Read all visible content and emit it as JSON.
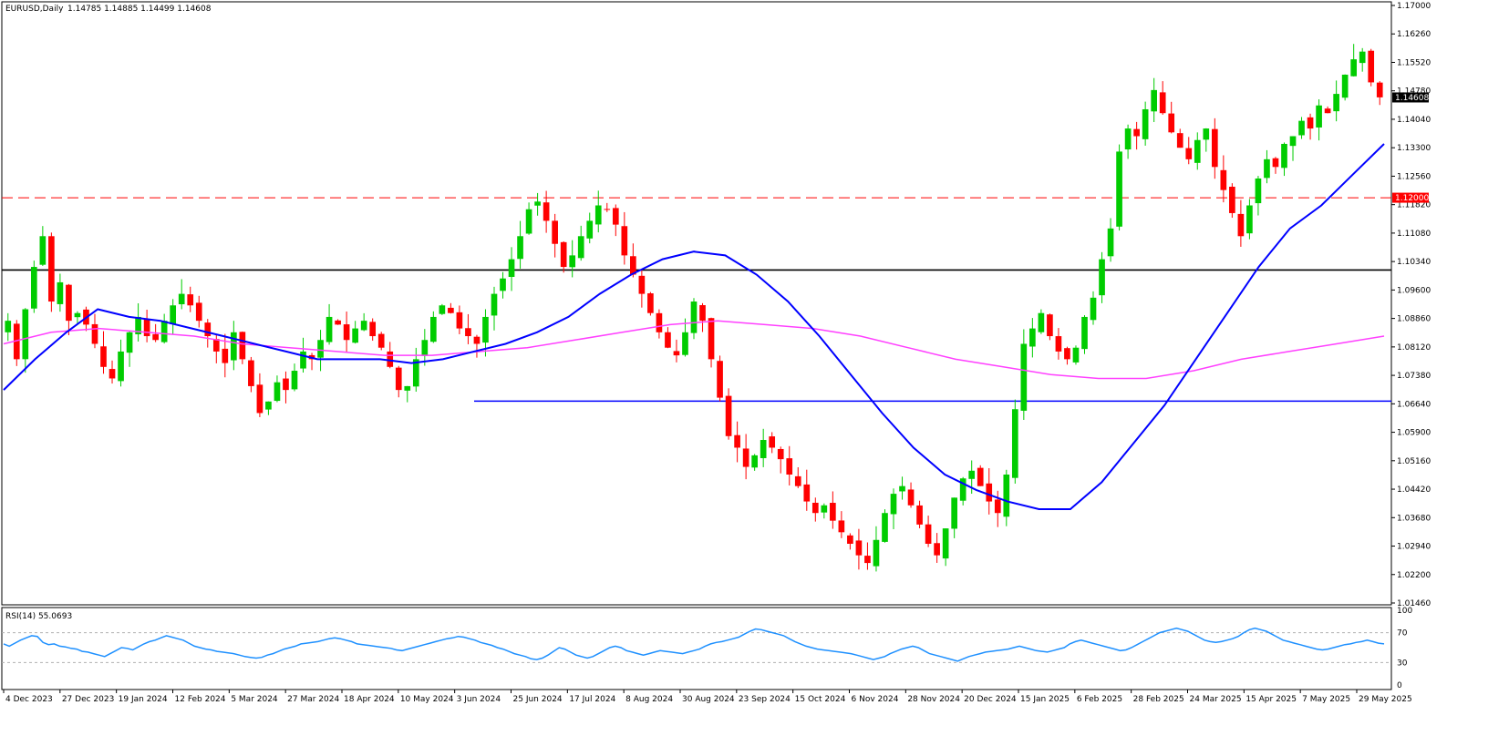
{
  "header": {
    "symbol_text": "EURUSD,Daily",
    "ohlc_text": "1.14785 1.14885 1.14499 1.14608"
  },
  "rsi": {
    "label": "RSI(14) 55.0693",
    "levels": [
      100,
      70,
      30,
      0
    ],
    "level_lines": [
      70,
      30
    ],
    "values": [
      55,
      52,
      56,
      60,
      63,
      66,
      65,
      57,
      54,
      55,
      52,
      51,
      49,
      48,
      45,
      44,
      42,
      40,
      38,
      42,
      46,
      50,
      49,
      47,
      51,
      55,
      58,
      60,
      63,
      66,
      64,
      62,
      60,
      56,
      52,
      50,
      48,
      47,
      45,
      44,
      43,
      42,
      40,
      38,
      37,
      36,
      37,
      40,
      42,
      45,
      48,
      50,
      52,
      55,
      56,
      57,
      58,
      60,
      62,
      63,
      62,
      60,
      58,
      55,
      54,
      53,
      52,
      51,
      50,
      49,
      47,
      46,
      48,
      50,
      52,
      54,
      56,
      58,
      60,
      62,
      63,
      65,
      64,
      62,
      60,
      57,
      55,
      53,
      50,
      48,
      45,
      42,
      40,
      38,
      35,
      34,
      36,
      40,
      45,
      50,
      48,
      44,
      40,
      38,
      36,
      38,
      42,
      46,
      50,
      52,
      50,
      46,
      44,
      42,
      40,
      42,
      44,
      46,
      45,
      44,
      43,
      42,
      44,
      46,
      48,
      52,
      55,
      57,
      58,
      60,
      62,
      64,
      68,
      72,
      75,
      74,
      72,
      70,
      68,
      66,
      62,
      58,
      55,
      52,
      50,
      48,
      47,
      46,
      45,
      44,
      43,
      42,
      40,
      38,
      36,
      34,
      36,
      38,
      42,
      45,
      48,
      50,
      52,
      50,
      46,
      42,
      40,
      38,
      36,
      34,
      32,
      35,
      38,
      40,
      42,
      44,
      45,
      46,
      47,
      48,
      50,
      52,
      50,
      48,
      46,
      45,
      44,
      46,
      48,
      50,
      55,
      58,
      60,
      58,
      56,
      54,
      52,
      50,
      48,
      46,
      47,
      50,
      54,
      58,
      62,
      66,
      70,
      72,
      74,
      76,
      74,
      72,
      68,
      64,
      60,
      58,
      57,
      58,
      60,
      62,
      65,
      70,
      74,
      76,
      74,
      72,
      68,
      64,
      60,
      58,
      56,
      54,
      52,
      50,
      48,
      47,
      48,
      50,
      52,
      54,
      55,
      57,
      58,
      60,
      58,
      56,
      55
    ]
  },
  "price_axis": {
    "labels": [
      "1.17000",
      "1.16260",
      "1.15520",
      "1.14780",
      "1.14040",
      "1.13300",
      "1.12560",
      "1.11820",
      "1.11080",
      "1.10340",
      "1.09600",
      "1.08860",
      "1.08120",
      "1.07380",
      "1.06640",
      "1.05900",
      "1.05160",
      "1.04420",
      "1.03680",
      "1.02940",
      "1.02200",
      "1.01460"
    ],
    "current_price_label": "1.14608",
    "current_price": 1.14608,
    "level_label": "1.12000",
    "level_color": "#ff0000",
    "current_color": "#000000"
  },
  "time_axis": {
    "labels": [
      "4 Dec 2023",
      "27 Dec 2023",
      "19 Jan 2024",
      "12 Feb 2024",
      "5 Mar 2024",
      "27 Mar 2024",
      "18 Apr 2024",
      "10 May 2024",
      "3 Jun 2024",
      "25 Jun 2024",
      "17 Jul 2024",
      "8 Aug 2024",
      "30 Aug 2024",
      "23 Sep 2024",
      "15 Oct 2024",
      "6 Nov 2024",
      "28 Nov 2024",
      "20 Dec 2024",
      "15 Jan 2025",
      "6 Feb 2025",
      "28 Feb 2025",
      "24 Mar 2025",
      "15 Apr 2025",
      "7 May 2025",
      "29 May 2025"
    ]
  },
  "colors": {
    "bull": "#00cc00",
    "bear": "#ff0000",
    "ma_fast": "#0000ff",
    "ma_slow": "#ff40ff",
    "hline_black": "#000000",
    "hline_blue": "#0000ff",
    "hline_red_dashed": "#ff0000",
    "rsi": "#1e90ff"
  },
  "chart_data": {
    "type": "candlestick",
    "symbol": "EURUSD",
    "timeframe": "Daily",
    "ylim": [
      1.0146,
      1.17
    ],
    "horizontal_levels": [
      {
        "price": 1.12,
        "style": "dashed",
        "color": "red"
      },
      {
        "price": 1.1012,
        "style": "solid",
        "color": "black"
      },
      {
        "price": 1.0671,
        "style": "solid",
        "color": "blue",
        "start_label": "3 Jun 2024"
      }
    ],
    "close_path": [
      1.088,
      1.078,
      1.091,
      1.102,
      1.11,
      1.093,
      1.098,
      1.088,
      1.09,
      1.087,
      1.082,
      1.076,
      1.073,
      1.08,
      1.085,
      1.089,
      1.084,
      1.083,
      1.088,
      1.092,
      1.095,
      1.092,
      1.088,
      1.084,
      1.08,
      1.077,
      1.085,
      1.078,
      1.071,
      1.064,
      1.067,
      1.072,
      1.07,
      1.075,
      1.08,
      1.078,
      1.083,
      1.089,
      1.087,
      1.083,
      1.086,
      1.088,
      1.084,
      1.081,
      1.076,
      1.07,
      1.071,
      1.078,
      1.083,
      1.089,
      1.092,
      1.09,
      1.086,
      1.084,
      1.082,
      1.089,
      1.095,
      1.099,
      1.104,
      1.11,
      1.117,
      1.119,
      1.114,
      1.108,
      1.102,
      1.105,
      1.11,
      1.114,
      1.118,
      1.117,
      1.113,
      1.105,
      1.1,
      1.095,
      1.09,
      1.085,
      1.081,
      1.079,
      1.085,
      1.093,
      1.088,
      1.078,
      1.068,
      1.058,
      1.055,
      1.05,
      1.053,
      1.057,
      1.055,
      1.052,
      1.048,
      1.045,
      1.041,
      1.038,
      1.04,
      1.036,
      1.033,
      1.03,
      1.027,
      1.025,
      1.031,
      1.038,
      1.043,
      1.045,
      1.04,
      1.035,
      1.03,
      1.027,
      1.034,
      1.042,
      1.047,
      1.049,
      1.045,
      1.041,
      1.038,
      1.048,
      1.065,
      1.082,
      1.086,
      1.09,
      1.084,
      1.08,
      1.078,
      1.081,
      1.089,
      1.094,
      1.104,
      1.112,
      1.132,
      1.138,
      1.136,
      1.143,
      1.148,
      1.142,
      1.137,
      1.133,
      1.13,
      1.135,
      1.138,
      1.128,
      1.122,
      1.116,
      1.11,
      1.118,
      1.125,
      1.13,
      1.128,
      1.134,
      1.136,
      1.14,
      1.138,
      1.144,
      1.142,
      1.147,
      1.152,
      1.156,
      1.158,
      1.15,
      1.1461
    ],
    "ma_fast_path": [
      1.07,
      1.078,
      1.085,
      1.091,
      1.089,
      1.088,
      1.086,
      1.084,
      1.082,
      1.08,
      1.078,
      1.078,
      1.078,
      1.077,
      1.078,
      1.08,
      1.082,
      1.085,
      1.089,
      1.095,
      1.1,
      1.104,
      1.106,
      1.105,
      1.1,
      1.093,
      1.084,
      1.074,
      1.064,
      1.055,
      1.048,
      1.044,
      1.041,
      1.039,
      1.039,
      1.046,
      1.056,
      1.066,
      1.078,
      1.09,
      1.102,
      1.112,
      1.118,
      1.126,
      1.134
    ],
    "ma_slow_path": [
      1.082,
      1.085,
      1.086,
      1.085,
      1.084,
      1.082,
      1.081,
      1.08,
      1.079,
      1.079,
      1.08,
      1.081,
      1.083,
      1.085,
      1.087,
      1.088,
      1.087,
      1.086,
      1.084,
      1.081,
      1.078,
      1.076,
      1.074,
      1.073,
      1.073,
      1.075,
      1.078,
      1.08,
      1.082,
      1.084
    ],
    "indicator": {
      "name": "RSI(14)",
      "last_value": 55.0693
    }
  }
}
